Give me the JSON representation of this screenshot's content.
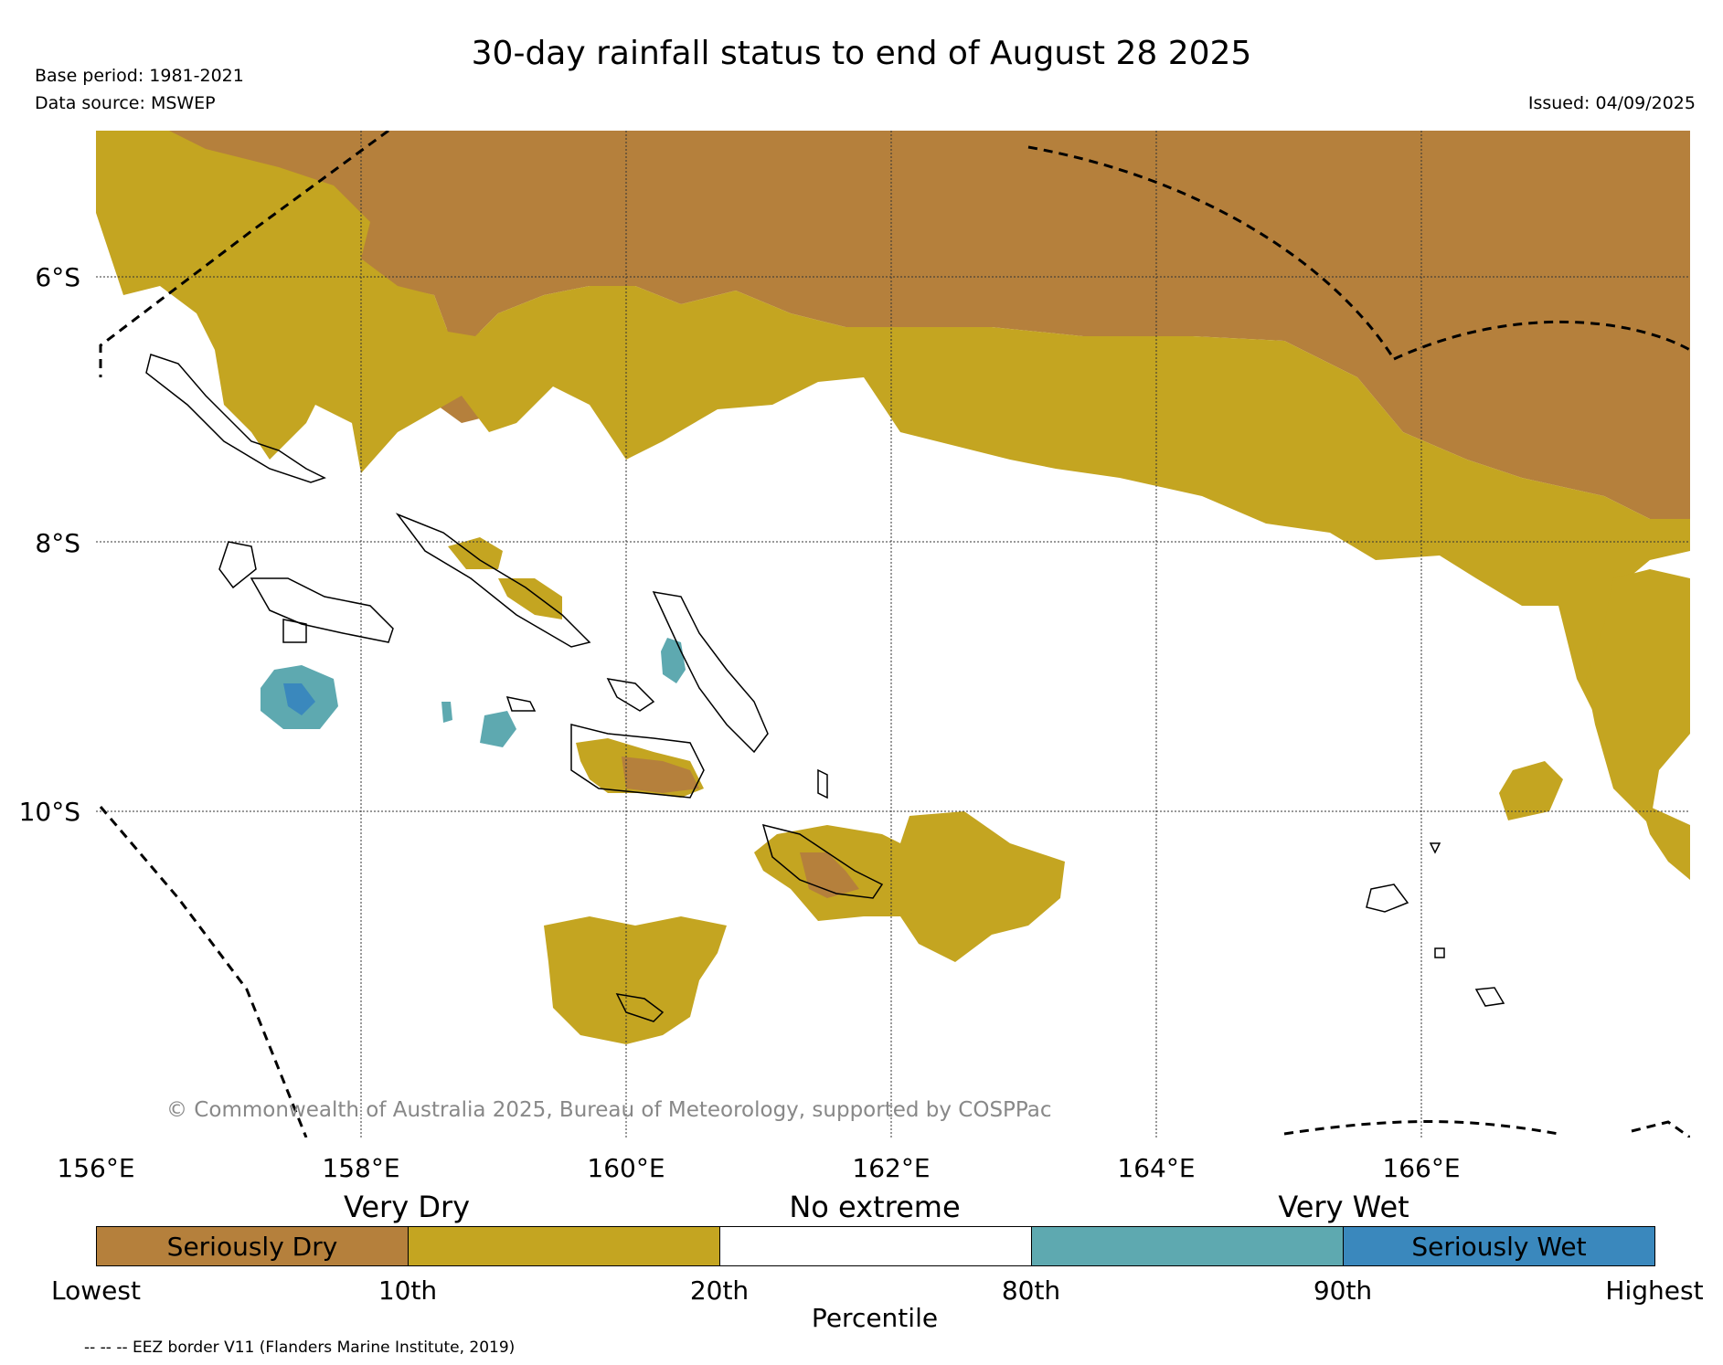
{
  "title": "30-day rainfall status to end of August 28 2025",
  "base_period": "Base period: 1981-2021",
  "data_source": "Data source: MSWEP",
  "issued": "Issued: 04/09/2025",
  "copyright": "© Commonwealth of Australia 2025, Bureau of Meteorology, supported by COSPPac",
  "lon_labels": [
    "156°E",
    "158°E",
    "160°E",
    "162°E",
    "164°E",
    "166°E"
  ],
  "lat_labels": [
    "6°S",
    "8°S",
    "10°S"
  ],
  "legend": {
    "category_headers": [
      "Very Dry",
      "No extreme",
      "Very Wet"
    ],
    "segments": [
      {
        "label": "Seriously Dry",
        "color": "#b5803c"
      },
      {
        "label": "",
        "color": "#c4a521"
      },
      {
        "label": "",
        "color": "#ffffff"
      },
      {
        "label": "",
        "color": "#5ea9b0"
      },
      {
        "label": "Seriously Wet",
        "color": "#3a88bd"
      }
    ],
    "percentile_ticks": [
      "Lowest",
      "10th",
      "20th",
      "80th",
      "90th",
      "Highest"
    ],
    "axis_label": "Percentile"
  },
  "eez_note": "-- -- -- EEZ border V11 (Flanders Marine Institute, 2019)",
  "colors": {
    "seriously_dry": "#b5803c",
    "very_dry": "#c4a521",
    "very_wet": "#5ea9b0",
    "seriously_wet": "#3a88bd"
  }
}
